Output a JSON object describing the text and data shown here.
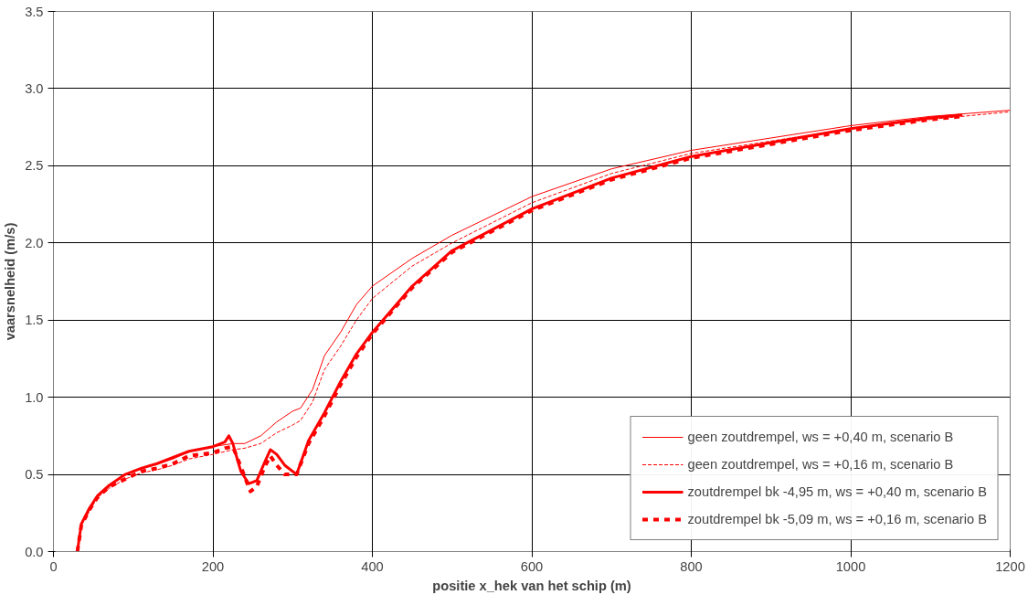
{
  "chart_data": {
    "type": "line",
    "xlabel": "positie x_hek van het schip (m)",
    "ylabel": "vaarsnelheid (m/s)",
    "xlim": [
      0,
      1200
    ],
    "xticks": [
      0,
      200,
      400,
      600,
      800,
      1000,
      1200
    ],
    "ylim": [
      0,
      3.5
    ],
    "yticks": [
      {
        "value": 0,
        "label": "0.0"
      },
      {
        "value": 0.5,
        "label": "0.5"
      },
      {
        "value": 1,
        "label": "1.0"
      },
      {
        "value": 1.5,
        "label": "1.5"
      },
      {
        "value": 2,
        "label": "2.0"
      },
      {
        "value": 2.5,
        "label": "2.5"
      },
      {
        "value": 3,
        "label": "3.0"
      },
      {
        "value": 3.5,
        "label": "3.5"
      }
    ],
    "grid": true,
    "legend": "bottom right",
    "series": [
      {
        "name": "geen zoutdrempel, ws = +0,40 m, scenario B",
        "color": "#ff0000",
        "line_style": "solid",
        "x": [
          30,
          35,
          45,
          55,
          70,
          90,
          110,
          130,
          150,
          170,
          200,
          225,
          240,
          260,
          280,
          300,
          310,
          325,
          340,
          360,
          380,
          400,
          450,
          500,
          600,
          700,
          800,
          900,
          1000,
          1100,
          1200
        ],
        "values": [
          0,
          0.18,
          0.27,
          0.36,
          0.42,
          0.5,
          0.54,
          0.57,
          0.6,
          0.65,
          0.68,
          0.7,
          0.7,
          0.75,
          0.84,
          0.91,
          0.93,
          1.05,
          1.27,
          1.42,
          1.6,
          1.72,
          1.9,
          2.05,
          2.3,
          2.48,
          2.6,
          2.68,
          2.76,
          2.82,
          2.86
        ]
      },
      {
        "name": "geen zoutdrempel, ws = +0,16 m, scenario B",
        "color": "#ff0000",
        "line_style": "dashed",
        "x": [
          30,
          35,
          45,
          55,
          70,
          90,
          110,
          130,
          150,
          170,
          200,
          225,
          240,
          260,
          280,
          300,
          310,
          325,
          340,
          360,
          380,
          400,
          450,
          500,
          600,
          700,
          800,
          900,
          1000,
          1100,
          1200
        ],
        "values": [
          0,
          0.17,
          0.26,
          0.35,
          0.41,
          0.47,
          0.51,
          0.53,
          0.56,
          0.6,
          0.63,
          0.66,
          0.67,
          0.7,
          0.77,
          0.82,
          0.85,
          0.97,
          1.18,
          1.33,
          1.5,
          1.64,
          1.85,
          2.0,
          2.26,
          2.45,
          2.58,
          2.66,
          2.74,
          2.8,
          2.85
        ]
      },
      {
        "name": "zoutdrempel bk -4,95 m, ws = +0,40 m, scenario B",
        "color": "#ff0000",
        "line_style": "solid",
        "x": [
          30,
          35,
          45,
          55,
          70,
          90,
          110,
          130,
          150,
          170,
          200,
          215,
          220,
          225,
          235,
          245,
          255,
          265,
          272,
          280,
          290,
          305,
          320,
          340,
          360,
          380,
          400,
          450,
          500,
          600,
          700,
          800,
          900,
          1000,
          1100,
          1140
        ],
        "values": [
          0,
          0.18,
          0.28,
          0.36,
          0.43,
          0.5,
          0.54,
          0.57,
          0.61,
          0.65,
          0.68,
          0.71,
          0.75,
          0.7,
          0.52,
          0.44,
          0.46,
          0.58,
          0.66,
          0.63,
          0.56,
          0.5,
          0.72,
          0.9,
          1.1,
          1.28,
          1.42,
          1.72,
          1.95,
          2.22,
          2.42,
          2.56,
          2.65,
          2.74,
          2.81,
          2.83
        ]
      },
      {
        "name": "zoutdrempel bk -5,09 m, ws = +0,16 m, scenario B",
        "color": "#ff0000",
        "line_style": "dashed",
        "x": [
          30,
          35,
          45,
          55,
          70,
          90,
          110,
          130,
          150,
          170,
          200,
          215,
          225,
          235,
          247,
          255,
          265,
          272,
          280,
          290,
          305,
          320,
          340,
          360,
          380,
          400,
          450,
          500,
          600,
          700,
          800,
          900,
          1000,
          1100,
          1140
        ],
        "values": [
          0,
          0.17,
          0.27,
          0.35,
          0.42,
          0.47,
          0.52,
          0.54,
          0.57,
          0.62,
          0.64,
          0.67,
          0.68,
          0.55,
          0.39,
          0.42,
          0.55,
          0.62,
          0.56,
          0.5,
          0.5,
          0.7,
          0.88,
          1.08,
          1.26,
          1.41,
          1.71,
          1.94,
          2.21,
          2.41,
          2.55,
          2.64,
          2.73,
          2.8,
          2.82
        ]
      }
    ]
  }
}
